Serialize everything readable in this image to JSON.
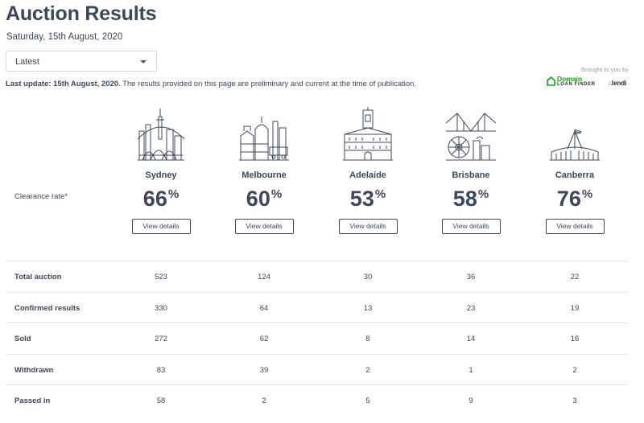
{
  "header": {
    "title": "Auction Results",
    "date": "Saturday, 15th August, 2020"
  },
  "filter": {
    "selected": "Latest"
  },
  "notice": {
    "bold": "Last update: 15th August, 2020.",
    "text": " The results provided on this page are preliminary and current at the time of publication."
  },
  "sponsor": {
    "brought_by": "Brought to you by",
    "domain_line1": "Domain",
    "domain_line2": "LOAN FINDER",
    "lendi": "lendi"
  },
  "clearance_label": "Clearance rate*",
  "view_details_label": "View details",
  "cities": [
    {
      "name": "Sydney",
      "rate": "66",
      "icon": "sydney-opera-house-icon"
    },
    {
      "name": "Melbourne",
      "rate": "60",
      "icon": "melbourne-flinders-station-icon"
    },
    {
      "name": "Adelaide",
      "rate": "53",
      "icon": "adelaide-town-hall-icon"
    },
    {
      "name": "Brisbane",
      "rate": "58",
      "icon": "brisbane-story-bridge-icon"
    },
    {
      "name": "Canberra",
      "rate": "76",
      "icon": "canberra-parliament-house-icon"
    }
  ],
  "percent_symbol": "%",
  "table": {
    "rows": [
      {
        "label": "Total auction",
        "values": [
          "523",
          "124",
          "30",
          "36",
          "22"
        ]
      },
      {
        "label": "Confirmed results",
        "values": [
          "330",
          "64",
          "13",
          "23",
          "19"
        ]
      },
      {
        "label": "Sold",
        "values": [
          "272",
          "62",
          "8",
          "14",
          "16"
        ]
      },
      {
        "label": "Withdrawn",
        "values": [
          "83",
          "39",
          "2",
          "1",
          "2"
        ]
      },
      {
        "label": "Passed in",
        "values": [
          "58",
          "2",
          "5",
          "9",
          "3"
        ]
      }
    ]
  },
  "colors": {
    "text": "#3c475b",
    "border": "#e6e8eb",
    "domain_green": "#0ea800"
  }
}
